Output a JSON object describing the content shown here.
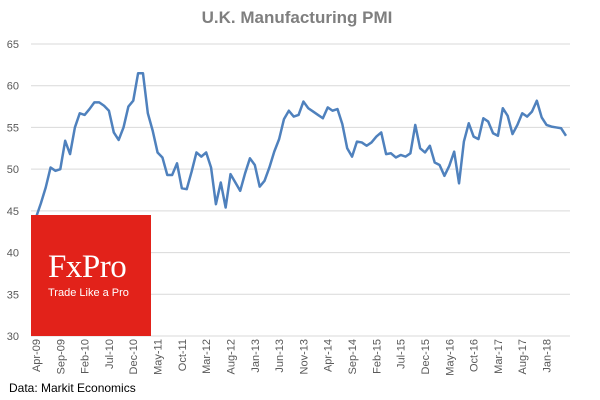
{
  "chart_data": {
    "type": "line",
    "title": "U.K. Manufacturing  PMI",
    "xlabel": "",
    "ylabel": "",
    "ylim": [
      30,
      65
    ],
    "yticks": [
      30,
      35,
      40,
      45,
      50,
      55,
      60,
      65
    ],
    "grid": true,
    "x_tick_labels": [
      "Apr-09",
      "Sep-09",
      "Feb-10",
      "Jul-10",
      "Dec-10",
      "May-11",
      "Oct-11",
      "Mar-12",
      "Aug-12",
      "Jan-13",
      "Jun-13",
      "Nov-13",
      "Apr-14",
      "Sep-14",
      "Feb-15",
      "Jul-15",
      "Dec-15",
      "May-16",
      "Oct-16",
      "Mar-17",
      "Aug-17",
      "Jan-18"
    ],
    "series": [
      {
        "name": "U.K. Manufacturing PMI",
        "color": "#4f81bd",
        "start": "Apr-09",
        "values": [
          44.2,
          45.9,
          47.8,
          50.2,
          49.8,
          50.0,
          53.4,
          51.8,
          55.0,
          56.7,
          56.5,
          57.2,
          58.0,
          58.0,
          57.6,
          57.0,
          54.4,
          53.5,
          55.0,
          57.5,
          58.2,
          61.5,
          61.5,
          56.7,
          54.6,
          52.0,
          51.4,
          49.3,
          49.3,
          50.7,
          47.7,
          47.6,
          49.7,
          52.0,
          51.5,
          52.0,
          50.2,
          45.8,
          48.4,
          45.4,
          49.4,
          48.4,
          47.4,
          49.5,
          51.3,
          50.5,
          47.9,
          48.6,
          50.2,
          52.1,
          53.6,
          56.0,
          57.0,
          56.3,
          56.5,
          58.1,
          57.3,
          56.9,
          56.5,
          56.1,
          57.4,
          57.0,
          57.2,
          55.4,
          52.5,
          51.5,
          53.3,
          53.2,
          52.8,
          53.2,
          53.9,
          54.4,
          51.8,
          51.9,
          51.4,
          51.7,
          51.5,
          51.9,
          55.3,
          52.5,
          52.0,
          52.8,
          50.8,
          50.5,
          49.2,
          50.4,
          52.1,
          48.3,
          53.3,
          55.5,
          53.9,
          53.6,
          56.1,
          55.7,
          54.3,
          54.0,
          57.3,
          56.4,
          54.2,
          55.3,
          56.7,
          56.3,
          56.9,
          58.2,
          56.2,
          55.3,
          55.1,
          55.0,
          54.9,
          54.0
        ]
      }
    ]
  },
  "logo": {
    "brand": "FxPro",
    "slogan": "Trade Like a Pro",
    "color": "#e2221a"
  },
  "source": "Data: Markit Economics"
}
